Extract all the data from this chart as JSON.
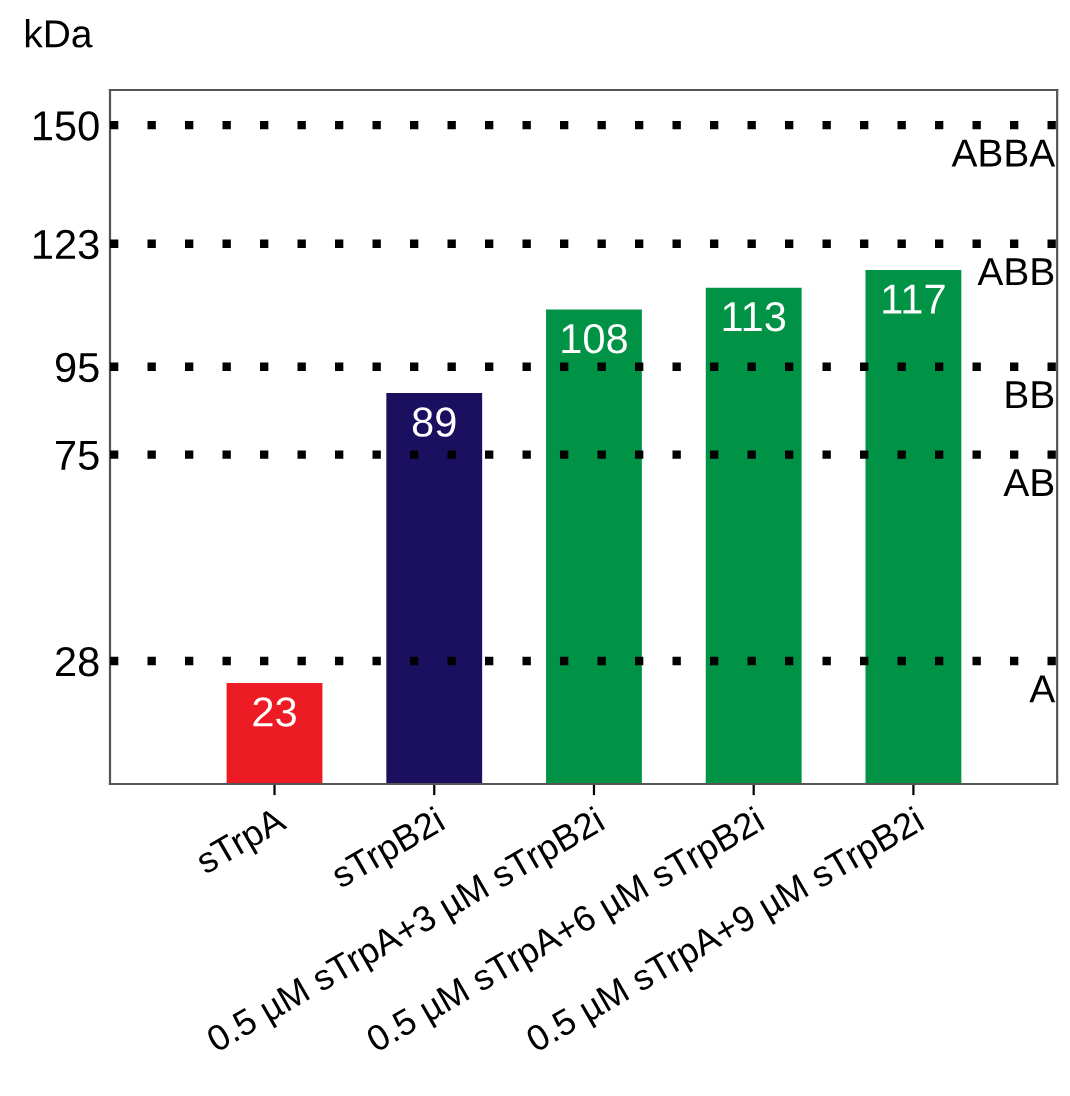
{
  "chart_data": {
    "type": "bar",
    "ylabel": "kDa",
    "categories": [
      "sTrpA",
      "sTrpB2i",
      "0.5 µM sTrpA+3 µM sTrpB2i",
      "0.5 µM sTrpA+6 µM sTrpB2i",
      "0.5 µM sTrpA+9 µM sTrpB2i"
    ],
    "values": [
      23,
      89,
      108,
      113,
      117
    ],
    "colors": [
      "#ed1c24",
      "#1b1060",
      "#009345",
      "#009345",
      "#009345"
    ],
    "data_labels": true,
    "ylim": [
      0,
      158
    ],
    "yticks": [
      28,
      75,
      95,
      123,
      150
    ],
    "grid": false,
    "ref_lines": [
      {
        "axis": "y",
        "value": 150,
        "label": "ABBA",
        "color": "#000000",
        "line_style": "dotted"
      },
      {
        "axis": "y",
        "value": 123,
        "label": "ABB",
        "color": "#000000",
        "line_style": "dotted"
      },
      {
        "axis": "y",
        "value": 95,
        "label": "BB",
        "color": "#000000",
        "line_style": "dotted"
      },
      {
        "axis": "y",
        "value": 75,
        "label": "AB",
        "color": "#000000",
        "line_style": "dotted"
      },
      {
        "axis": "y",
        "value": 28,
        "label": "A",
        "color": "#000000",
        "line_style": "dotted"
      }
    ]
  }
}
